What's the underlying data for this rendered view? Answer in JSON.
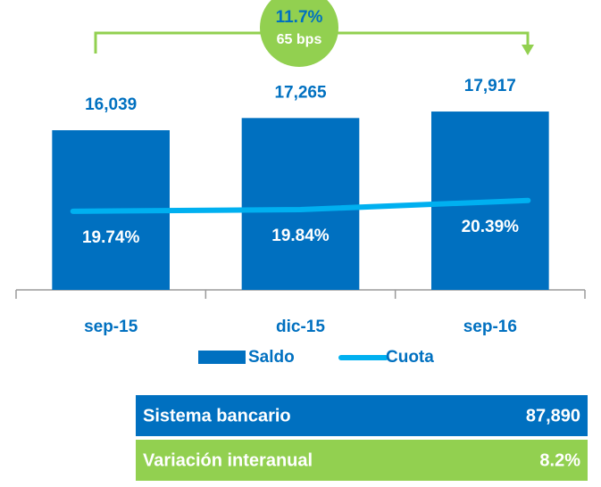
{
  "chart_data": {
    "type": "bar",
    "categories": [
      "sep-15",
      "dic-15",
      "sep-16"
    ],
    "series": [
      {
        "name": "Saldo",
        "color": "#0070c0",
        "values": [
          16039,
          17265,
          17917
        ],
        "value_labels": [
          "16,039",
          "17,265",
          "17,917"
        ]
      },
      {
        "name": "Cuota",
        "type": "line",
        "axis": "y2",
        "color": "#00b0f0",
        "values": [
          19.74,
          19.84,
          20.39
        ],
        "value_labels": [
          "19.74%",
          "19.84%",
          "20.39%"
        ]
      }
    ],
    "ylim": [
      0,
      25000
    ],
    "y2lim": [
      15,
      30
    ],
    "annotation": {
      "value_label": "11.7%",
      "bps_label": "65 bps",
      "color": "#92d050"
    }
  },
  "table": {
    "rows": [
      [
        "Sistema bancario",
        "87,890"
      ],
      [
        "Variación interanual",
        "8.2%"
      ]
    ],
    "colors": [
      "#0070c0",
      "#92d050"
    ]
  }
}
